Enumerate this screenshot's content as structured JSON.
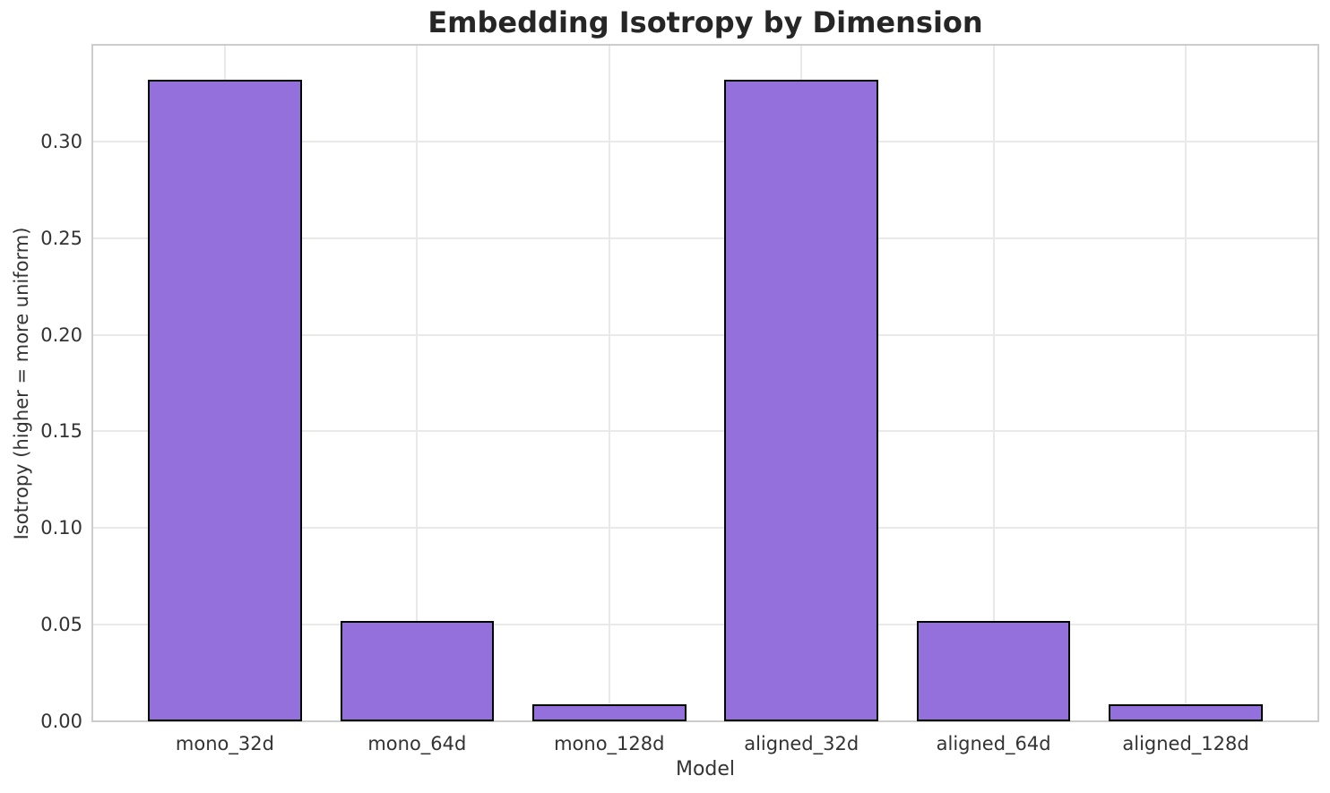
{
  "chart_data": {
    "type": "bar",
    "title": "Embedding Isotropy by Dimension",
    "xlabel": "Model",
    "ylabel": "Isotropy (higher = more uniform)",
    "categories": [
      "mono_32d",
      "mono_64d",
      "mono_128d",
      "aligned_32d",
      "aligned_64d",
      "aligned_128d"
    ],
    "values": [
      0.332,
      0.052,
      0.009,
      0.332,
      0.052,
      0.009
    ],
    "ylim": [
      0,
      0.35
    ],
    "yticks": [
      "0.00",
      "0.05",
      "0.10",
      "0.15",
      "0.20",
      "0.25",
      "0.30"
    ],
    "grid": "on",
    "legend": "none",
    "bar_color": "#9370DB",
    "bar_edge_color": "#000000",
    "background_color": "#ffffff",
    "grid_color": "#e9e9e9",
    "spine_color": "#cccccc"
  }
}
